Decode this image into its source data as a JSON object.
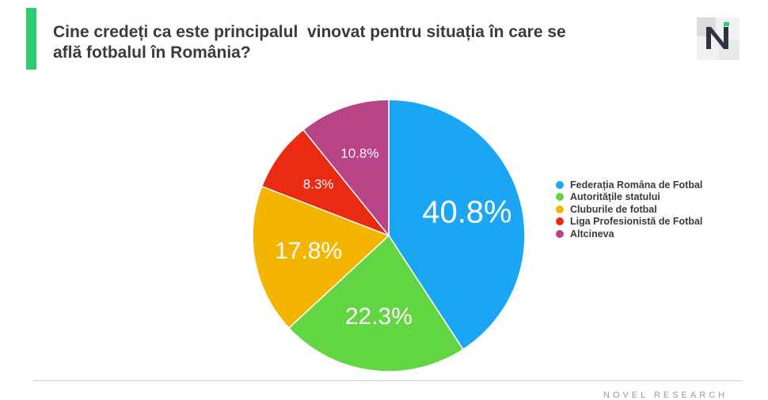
{
  "title": "Cine credeți ca este principalul  vinovat pentru situația în care se\naflă fotbalul în România?",
  "footer": {
    "brand": "NOVEL RESEARCH"
  },
  "logo": {
    "icon": "novel-research-logo-icon"
  },
  "chart_data": {
    "type": "pie",
    "title": "Cine credeți ca este principalul  vinovat pentru situația în care se află fotbalul în România?",
    "slices": [
      {
        "label": "Federația Româna de Fotbal",
        "value": 40.8,
        "display": "40.8%",
        "color": "#1aa6f2"
      },
      {
        "label": "Autoritățile statului",
        "value": 22.3,
        "display": "22.3%",
        "color": "#62d543"
      },
      {
        "label": "Cluburile de fotbal",
        "value": 17.8,
        "display": "17.8%",
        "color": "#f4b400"
      },
      {
        "label": "Liga Profesionistă de Fotbal",
        "value": 8.3,
        "display": "8.3%",
        "color": "#ea2a12"
      },
      {
        "label": "Altcineva",
        "value": 10.8,
        "display": "10.8%",
        "color": "#b84386"
      }
    ],
    "legend_position": "right",
    "start": "12 o'clock",
    "direction": "clockwise"
  }
}
